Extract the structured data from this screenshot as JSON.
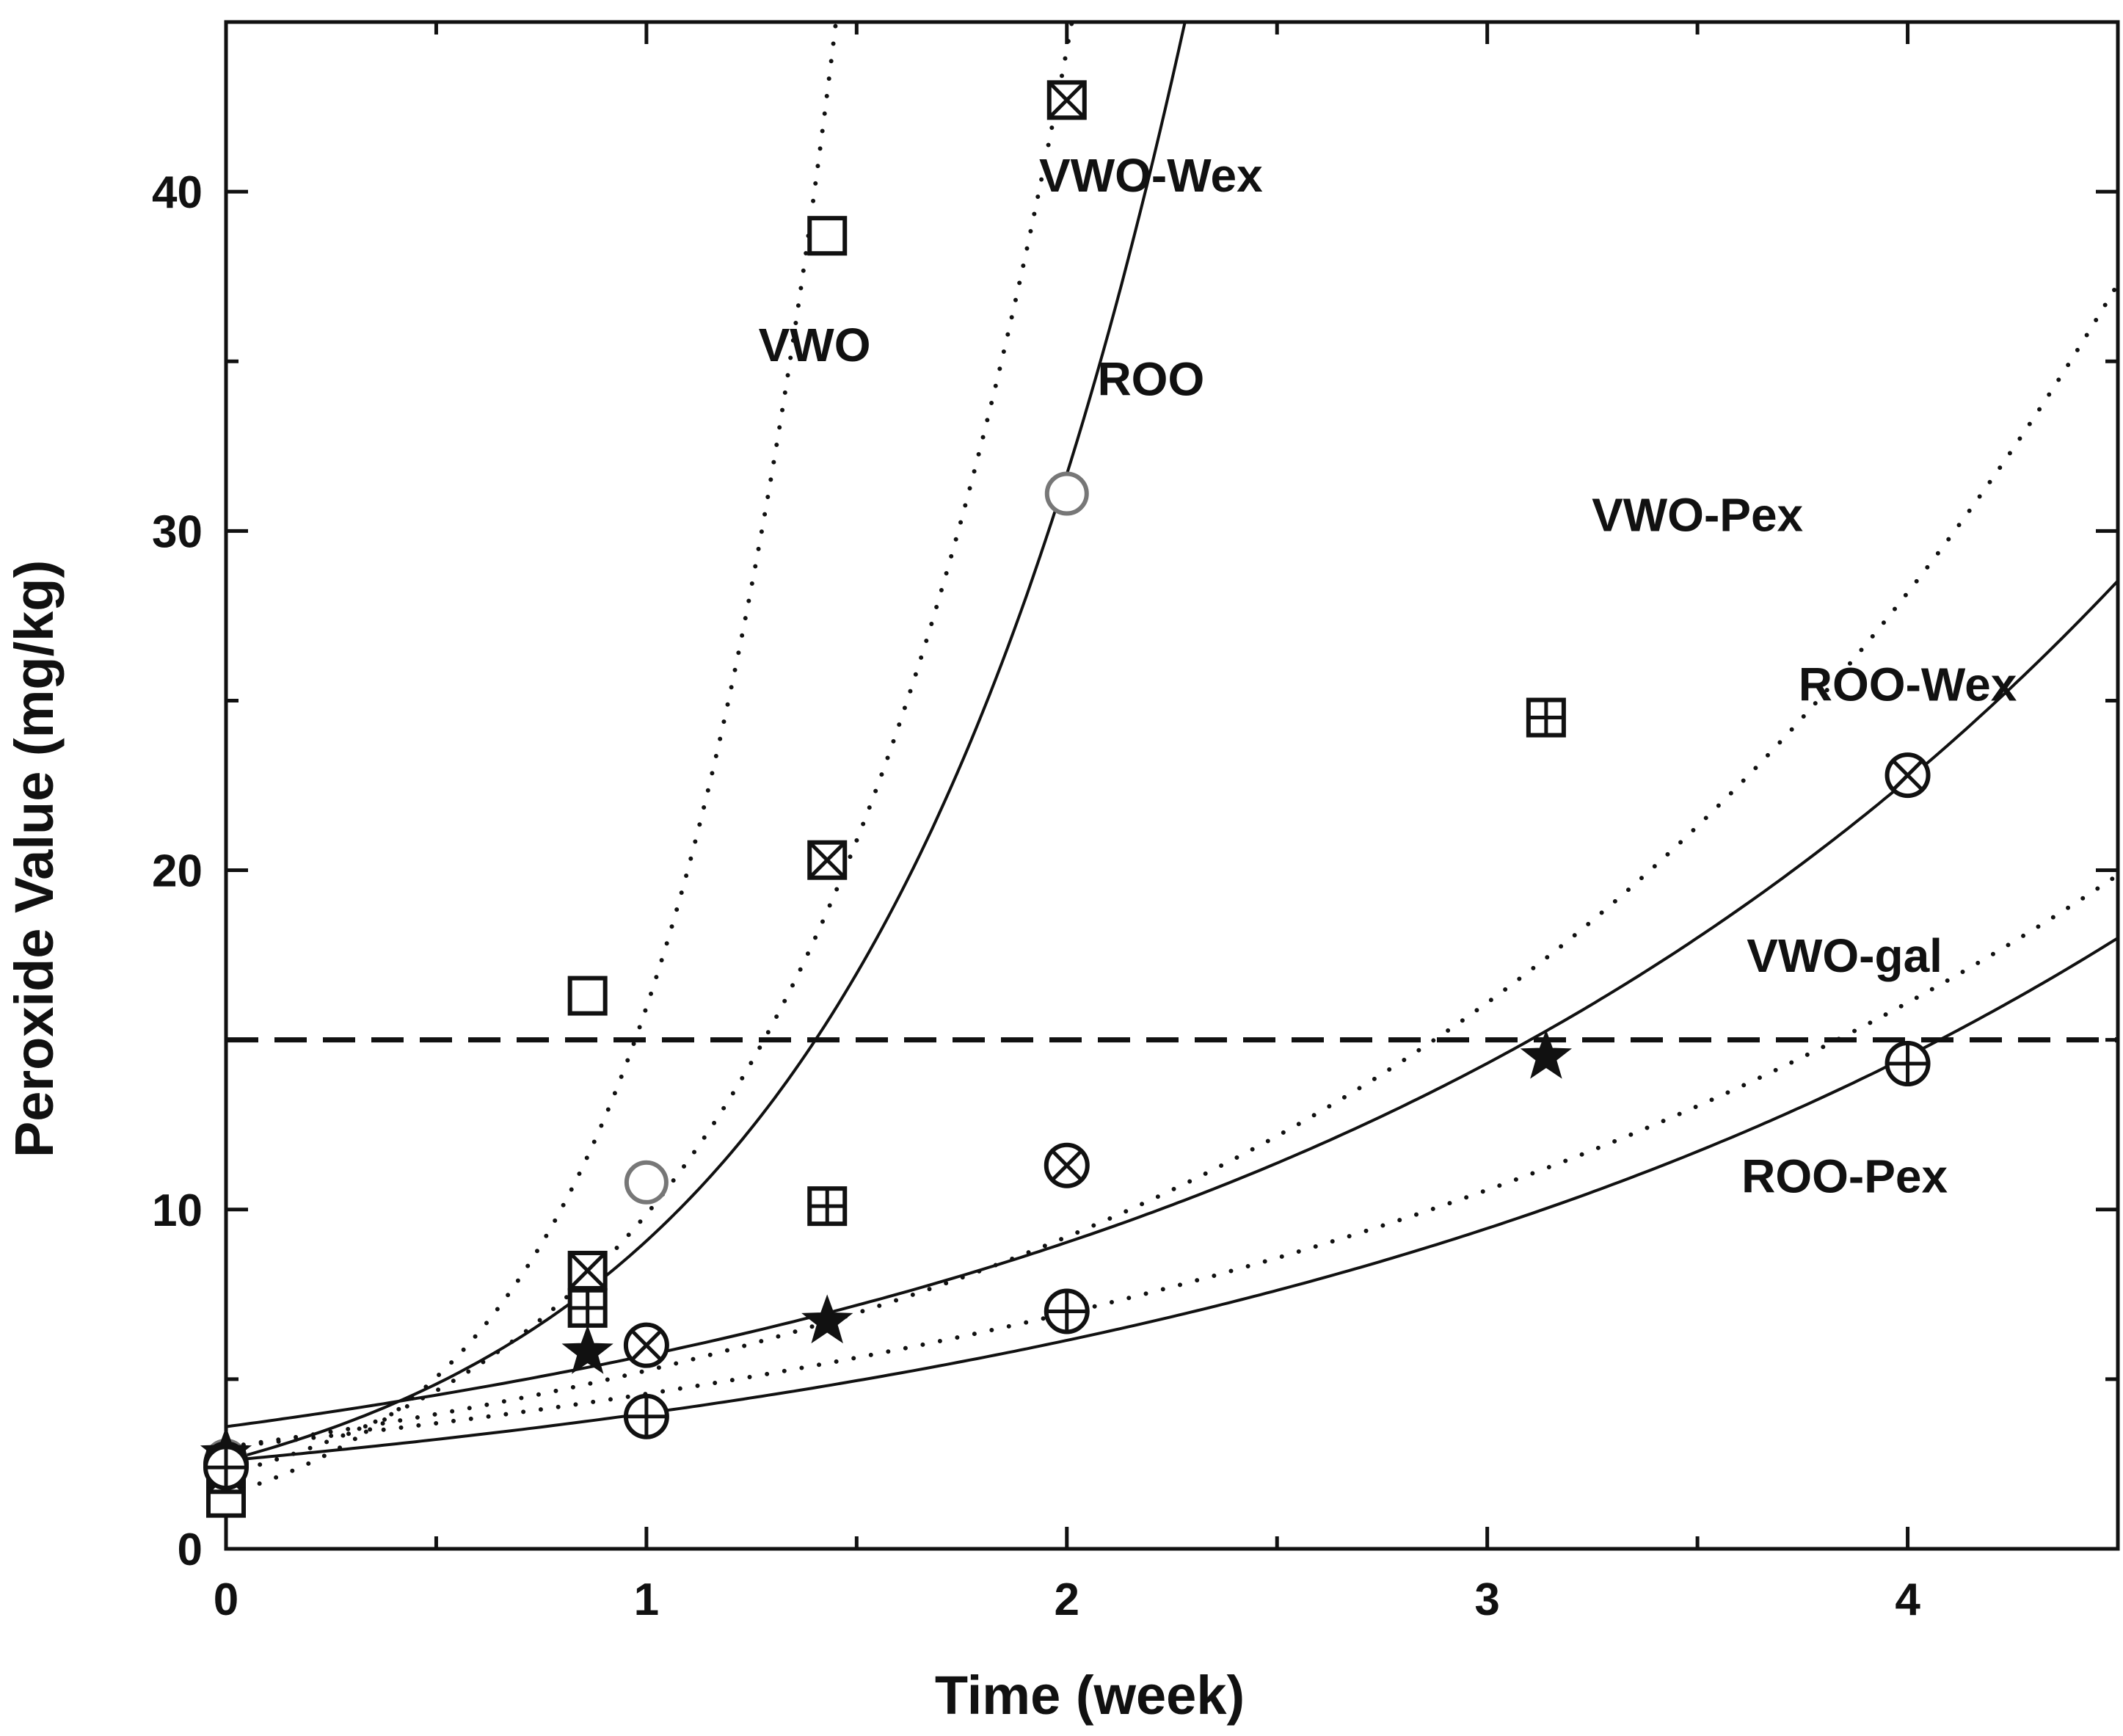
{
  "chart_data": {
    "type": "scatter",
    "title": "",
    "xlabel": "Time (week)",
    "ylabel": "Peroxide Value (mg/kg)",
    "xlim": [
      0,
      4.5
    ],
    "ylim": [
      0,
      45
    ],
    "xticks": [
      0,
      1,
      2,
      3,
      4
    ],
    "xtick_labels": [
      "0",
      "1",
      "2",
      "3",
      "4"
    ],
    "yticks": [
      0,
      10,
      20,
      30,
      40
    ],
    "ytick_labels": [
      "0",
      "10",
      "20",
      "30",
      "40"
    ],
    "grid": false,
    "legend": "none",
    "threshold": {
      "y": 15,
      "style": "dashed"
    },
    "series": [
      {
        "name": "VWO",
        "marker": "square",
        "line": "dotted",
        "color": "#111111",
        "points": [
          {
            "x": 0.0,
            "y": 1.5
          },
          {
            "x": 0.86,
            "y": 16.3
          },
          {
            "x": 1.43,
            "y": 38.7
          }
        ],
        "fit": {
          "a": 1.6,
          "b": 2.3
        },
        "label": {
          "text": "VWO",
          "x": 1.4,
          "y": 35
        }
      },
      {
        "name": "VWO-Wex",
        "marker": "boxed-x",
        "line": "dotted",
        "color": "#111111",
        "points": [
          {
            "x": 0.0,
            "y": 2.2
          },
          {
            "x": 0.86,
            "y": 8.2
          },
          {
            "x": 1.43,
            "y": 20.3
          },
          {
            "x": 2.0,
            "y": 42.7
          }
        ],
        "fit": {
          "a": 2.2,
          "b": 1.5
        },
        "label": {
          "text": "VWO-Wex",
          "x": 2.2,
          "y": 40
        }
      },
      {
        "name": "ROO",
        "marker": "circle-gray",
        "line": "solid",
        "color": "#777777",
        "points": [
          {
            "x": 0.0,
            "y": 2.6
          },
          {
            "x": 1.0,
            "y": 10.8
          },
          {
            "x": 2.0,
            "y": 31.1
          }
        ],
        "fit": {
          "a": 2.6,
          "b": 1.25
        },
        "label": {
          "text": "ROO",
          "x": 2.2,
          "y": 34
        }
      },
      {
        "name": "VWO-Pex",
        "marker": "boxed-plus",
        "line": "dotted",
        "color": "#111111",
        "points": [
          {
            "x": 0.0,
            "y": 2.4
          },
          {
            "x": 0.86,
            "y": 7.1
          },
          {
            "x": 1.43,
            "y": 10.1
          },
          {
            "x": 3.14,
            "y": 24.5
          }
        ],
        "fit": {
          "a": 3.0,
          "b": 0.56
        },
        "label": {
          "text": "VWO-Pex",
          "x": 3.5,
          "y": 30
        }
      },
      {
        "name": "ROO-Wex",
        "marker": "circle-x",
        "line": "solid",
        "color": "#111111",
        "points": [
          {
            "x": 0.0,
            "y": 2.5
          },
          {
            "x": 1.0,
            "y": 6.0
          },
          {
            "x": 2.0,
            "y": 11.3
          },
          {
            "x": 4.0,
            "y": 22.8
          }
        ],
        "fit": {
          "a": 3.6,
          "b": 0.46
        },
        "label": {
          "text": "ROO-Wex",
          "x": 4.0,
          "y": 25
        }
      },
      {
        "name": "VWO-gal",
        "marker": "star",
        "line": "dotted",
        "color": "#111111",
        "points": [
          {
            "x": 0.0,
            "y": 2.8
          },
          {
            "x": 0.86,
            "y": 5.8
          },
          {
            "x": 1.43,
            "y": 6.7
          },
          {
            "x": 3.14,
            "y": 14.5
          }
        ],
        "fit": {
          "a": 3.0,
          "b": 0.42
        },
        "label": {
          "text": "VWO-gal",
          "x": 3.85,
          "y": 17
        }
      },
      {
        "name": "ROO-Pex",
        "marker": "circle-plus",
        "line": "solid",
        "color": "#111111",
        "points": [
          {
            "x": 0.0,
            "y": 2.4
          },
          {
            "x": 1.0,
            "y": 3.9
          },
          {
            "x": 2.0,
            "y": 7.0
          },
          {
            "x": 4.0,
            "y": 14.3
          }
        ],
        "fit": {
          "a": 2.6,
          "b": 0.43
        },
        "label": {
          "text": "ROO-Pex",
          "x": 3.85,
          "y": 10.5
        }
      }
    ]
  }
}
